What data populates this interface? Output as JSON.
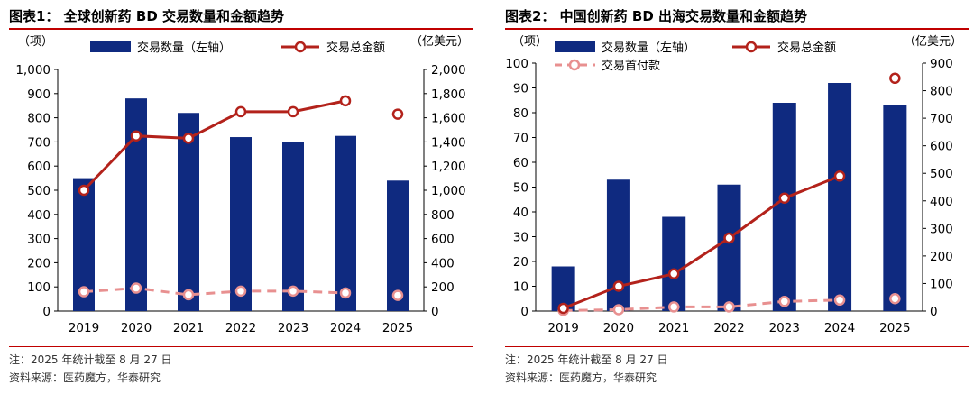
{
  "charts": [
    {
      "title": "图表1：  全球创新药 BD 交易数量和金额趋势",
      "note": "注：2025 年统计截至 8 月 27 日",
      "source": "资料来源：医药魔方，华泰研究",
      "left_unit": "（项）",
      "right_unit": "（亿美元）",
      "legend": [
        "交易数量（左轴）",
        "交易总金额"
      ],
      "colors": {
        "bar": "#0f2a80",
        "total": "#b3221b",
        "upfront": "#e89090"
      },
      "chart_data": {
        "type": "bar+line",
        "categories": [
          "2019",
          "2020",
          "2021",
          "2022",
          "2023",
          "2024",
          "2025"
        ],
        "left_ticks": [
          "1,000",
          "900",
          "800",
          "700",
          "600",
          "500",
          "400",
          "300",
          "200",
          "100",
          "0"
        ],
        "right_ticks": [
          "2,000",
          "1,800",
          "1,600",
          "1,400",
          "1,200",
          "1,000",
          "800",
          "600",
          "400",
          "200",
          "0"
        ],
        "ylim_left": [
          0,
          1000
        ],
        "ylim_right": [
          0,
          2000
        ],
        "series": [
          {
            "name": "交易数量（左轴）",
            "type": "bar",
            "axis": "left",
            "values": [
              550,
              880,
              820,
              720,
              700,
              725,
              540
            ]
          },
          {
            "name": "交易总金额",
            "type": "line",
            "axis": "right",
            "values": [
              1000,
              1450,
              1430,
              1650,
              1650,
              1740,
              null
            ],
            "marker_only": [
              null,
              null,
              null,
              null,
              null,
              null,
              1630
            ]
          },
          {
            "name": "",
            "type": "dashed-line",
            "axis": "right",
            "values": [
              160,
              190,
              135,
              165,
              165,
              150,
              null
            ],
            "marker_only": [
              null,
              null,
              null,
              null,
              null,
              null,
              130
            ]
          }
        ]
      }
    },
    {
      "title": "图表2：  中国创新药 BD 出海交易数量和金额趋势",
      "note": "注：2025 年统计截至 8 月 27 日",
      "source": "资料来源：医药魔方，华泰研究",
      "left_unit": "（项）",
      "right_unit": "（亿美元）",
      "legend": [
        "交易数量（左轴）",
        "交易总金额",
        "交易首付款"
      ],
      "colors": {
        "bar": "#0f2a80",
        "total": "#b3221b",
        "upfront": "#e89090"
      },
      "chart_data": {
        "type": "bar+line",
        "categories": [
          "2019",
          "2020",
          "2021",
          "2022",
          "2023",
          "2024",
          "2025"
        ],
        "left_ticks": [
          "100",
          "90",
          "80",
          "70",
          "60",
          "50",
          "40",
          "30",
          "20",
          "10",
          "0"
        ],
        "right_ticks": [
          "900",
          "800",
          "700",
          "600",
          "500",
          "400",
          "300",
          "200",
          "100",
          "0"
        ],
        "ylim_left": [
          0,
          100
        ],
        "ylim_right": [
          0,
          900
        ],
        "series": [
          {
            "name": "交易数量（左轴）",
            "type": "bar",
            "axis": "left",
            "values": [
              18,
              53,
              38,
              51,
              84,
              92,
              83
            ]
          },
          {
            "name": "交易总金额",
            "type": "line",
            "axis": "right",
            "values": [
              10,
              90,
              135,
              265,
              410,
              490,
              null
            ],
            "marker_only": [
              null,
              null,
              null,
              null,
              null,
              null,
              845
            ]
          },
          {
            "name": "交易首付款",
            "type": "dashed-line",
            "axis": "right",
            "values": [
              2,
              5,
              15,
              15,
              35,
              40,
              null
            ],
            "marker_only": [
              null,
              null,
              null,
              null,
              null,
              null,
              45
            ]
          }
        ]
      }
    }
  ]
}
